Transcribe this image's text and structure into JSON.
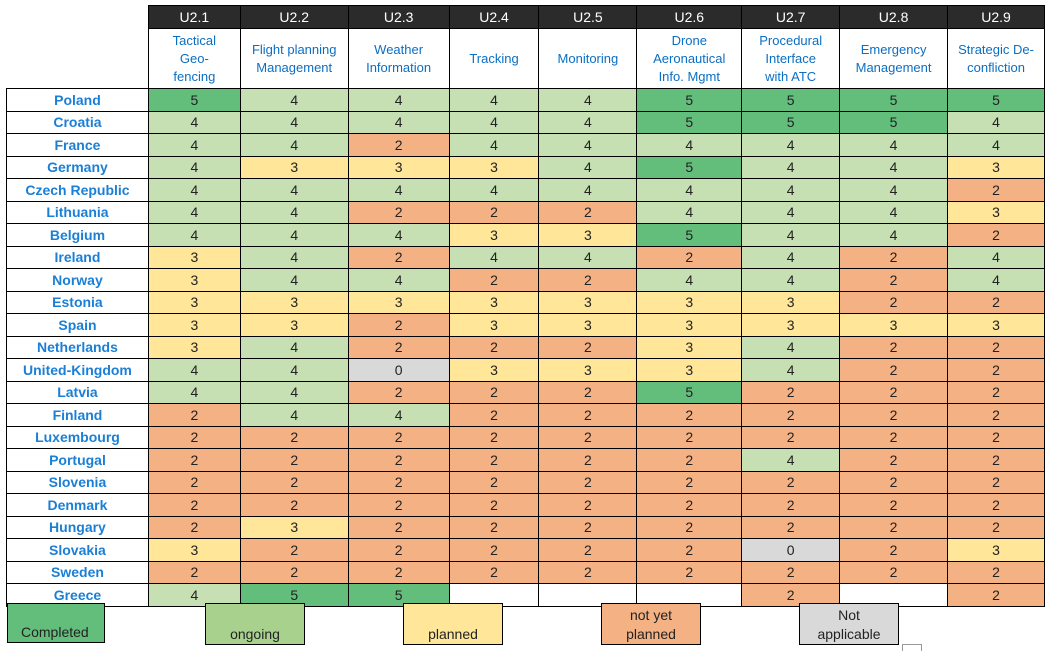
{
  "columns": [
    {
      "code": "U2.1",
      "lines": [
        "Tactical",
        "Geo-",
        "fencing"
      ]
    },
    {
      "code": "U2.2",
      "lines": [
        "Flight planning",
        "Management"
      ]
    },
    {
      "code": "U2.3",
      "lines": [
        "Weather",
        "Information"
      ]
    },
    {
      "code": "U2.4",
      "lines": [
        "Tracking"
      ]
    },
    {
      "code": "U2.5",
      "lines": [
        "Monitoring"
      ]
    },
    {
      "code": "U2.6",
      "lines": [
        "Drone",
        "Aeronautical",
        "Info. Mgmt"
      ]
    },
    {
      "code": "U2.7",
      "lines": [
        "Procedural",
        "Interface",
        "with ATC"
      ]
    },
    {
      "code": "U2.8",
      "lines": [
        "Emergency",
        "Management"
      ]
    },
    {
      "code": "U2.9",
      "lines": [
        "Strategic De-",
        "confliction"
      ]
    }
  ],
  "rows": [
    {
      "country": "Poland",
      "values": [
        "5",
        "4",
        "4",
        "4",
        "4",
        "5",
        "5",
        "5",
        "5"
      ]
    },
    {
      "country": "Croatia",
      "values": [
        "4",
        "4",
        "4",
        "4",
        "4",
        "5",
        "5",
        "5",
        "4"
      ]
    },
    {
      "country": "France",
      "values": [
        "4",
        "4",
        "2",
        "4",
        "4",
        "4",
        "4",
        "4",
        "4"
      ]
    },
    {
      "country": "Germany",
      "values": [
        "4",
        "3",
        "3",
        "3",
        "4",
        "5",
        "4",
        "4",
        "3"
      ]
    },
    {
      "country": "Czech Republic",
      "values": [
        "4",
        "4",
        "4",
        "4",
        "4",
        "4",
        "4",
        "4",
        "2"
      ]
    },
    {
      "country": "Lithuania",
      "values": [
        "4",
        "4",
        "2",
        "2",
        "2",
        "4",
        "4",
        "4",
        "3"
      ]
    },
    {
      "country": "Belgium",
      "values": [
        "4",
        "4",
        "4",
        "3",
        "3",
        "5",
        "4",
        "4",
        "2"
      ]
    },
    {
      "country": "Ireland",
      "values": [
        "3",
        "4",
        "2",
        "4",
        "4",
        "2",
        "4",
        "2",
        "4"
      ]
    },
    {
      "country": "Norway",
      "values": [
        "3",
        "4",
        "4",
        "2",
        "2",
        "4",
        "4",
        "2",
        "4"
      ]
    },
    {
      "country": "Estonia",
      "values": [
        "3",
        "3",
        "3",
        "3",
        "3",
        "3",
        "3",
        "2",
        "2"
      ]
    },
    {
      "country": "Spain",
      "values": [
        "3",
        "3",
        "2",
        "3",
        "3",
        "3",
        "3",
        "3",
        "3"
      ]
    },
    {
      "country": "Netherlands",
      "values": [
        "3",
        "4",
        "2",
        "2",
        "2",
        "3",
        "4",
        "2",
        "2"
      ]
    },
    {
      "country": "United-Kingdom",
      "values": [
        "4",
        "4",
        "0",
        "3",
        "3",
        "3",
        "4",
        "2",
        "2"
      ]
    },
    {
      "country": "Latvia",
      "values": [
        "4",
        "4",
        "2",
        "2",
        "2",
        "5",
        "2",
        "2",
        "2"
      ]
    },
    {
      "country": "Finland",
      "values": [
        "2",
        "4",
        "4",
        "2",
        "2",
        "2",
        "2",
        "2",
        "2"
      ]
    },
    {
      "country": "Luxembourg",
      "values": [
        "2",
        "2",
        "2",
        "2",
        "2",
        "2",
        "2",
        "2",
        "2"
      ]
    },
    {
      "country": "Portugal",
      "values": [
        "2",
        "2",
        "2",
        "2",
        "2",
        "2",
        "4",
        "2",
        "2"
      ]
    },
    {
      "country": "Slovenia",
      "values": [
        "2",
        "2",
        "2",
        "2",
        "2",
        "2",
        "2",
        "2",
        "2"
      ]
    },
    {
      "country": "Denmark",
      "values": [
        "2",
        "2",
        "2",
        "2",
        "2",
        "2",
        "2",
        "2",
        "2"
      ]
    },
    {
      "country": "Hungary",
      "values": [
        "2",
        "3",
        "2",
        "2",
        "2",
        "2",
        "2",
        "2",
        "2"
      ]
    },
    {
      "country": "Slovakia",
      "values": [
        "3",
        "2",
        "2",
        "2",
        "2",
        "2",
        "0",
        "2",
        "3"
      ]
    },
    {
      "country": "Sweden",
      "values": [
        "2",
        "2",
        "2",
        "2",
        "2",
        "2",
        "2",
        "2",
        "2"
      ]
    },
    {
      "country": "Greece",
      "values": [
        "4",
        "5",
        "5",
        "",
        "",
        "",
        "2",
        "",
        "2"
      ]
    }
  ],
  "legend": [
    {
      "lines": [
        "Completed"
      ],
      "color": "#63be7b"
    },
    {
      "lines": [
        "ongoing"
      ],
      "color": "#a9d18e"
    },
    {
      "lines": [
        "planned"
      ],
      "color": "#ffe699"
    },
    {
      "lines": [
        "not yet",
        "planned"
      ],
      "color": "#f4b183"
    },
    {
      "lines": [
        "Not",
        "applicable"
      ],
      "color": "#d9d9d9"
    }
  ],
  "colors": {
    "5": "#63be7b",
    "4": "#c6e0b4",
    "3": "#ffe699",
    "2": "#f4b183",
    "0": "#d9d9d9"
  }
}
